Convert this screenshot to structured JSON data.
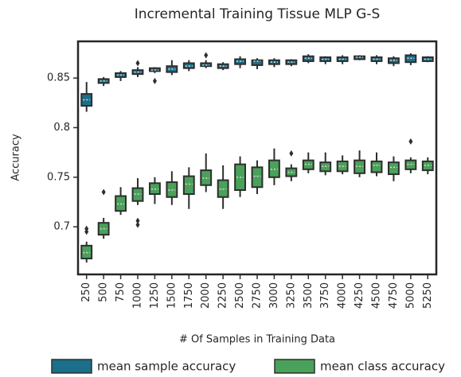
{
  "chart_data": {
    "type": "box",
    "title": "Incremental Training Tissue MLP G-S",
    "x_label": "# Of Samples in Training Data",
    "y_label": "Accuracy",
    "categories": [
      "250",
      "500",
      "750",
      "1000",
      "1250",
      "1500",
      "1750",
      "2000",
      "2250",
      "2500",
      "2750",
      "3000",
      "3250",
      "3500",
      "3750",
      "4000",
      "4250",
      "4500",
      "4750",
      "5000",
      "5250"
    ],
    "ylim": [
      0.652,
      0.887
    ],
    "yticks": [
      0.7,
      0.75,
      0.8,
      0.85
    ],
    "series": [
      {
        "name": "mean sample accuracy",
        "color": "#1b6f8a",
        "min": [
          0.816,
          0.842,
          0.847,
          0.851,
          0.855,
          0.853,
          0.857,
          0.86,
          0.858,
          0.86,
          0.859,
          0.861,
          0.862,
          0.865,
          0.864,
          0.864,
          0.868,
          0.864,
          0.862,
          0.863,
          0.866
        ],
        "q1": [
          0.822,
          0.845,
          0.851,
          0.854,
          0.857,
          0.856,
          0.86,
          0.862,
          0.86,
          0.864,
          0.863,
          0.864,
          0.864,
          0.867,
          0.867,
          0.867,
          0.869,
          0.867,
          0.865,
          0.866,
          0.867
        ],
        "median": [
          0.828,
          0.847,
          0.853,
          0.856,
          0.858,
          0.859,
          0.862,
          0.863,
          0.862,
          0.867,
          0.867,
          0.866,
          0.866,
          0.87,
          0.869,
          0.869,
          0.871,
          0.869,
          0.868,
          0.87,
          0.869
        ],
        "q3": [
          0.834,
          0.849,
          0.855,
          0.858,
          0.86,
          0.862,
          0.865,
          0.865,
          0.864,
          0.869,
          0.868,
          0.868,
          0.868,
          0.872,
          0.871,
          0.871,
          0.872,
          0.871,
          0.87,
          0.873,
          0.871
        ],
        "max": [
          0.846,
          0.851,
          0.857,
          0.861,
          0.861,
          0.868,
          0.868,
          0.868,
          0.866,
          0.872,
          0.87,
          0.87,
          0.869,
          0.874,
          0.872,
          0.873,
          0.873,
          0.873,
          0.872,
          0.875,
          0.872
        ],
        "outliers": [
          [],
          [],
          [],
          [
            0.865
          ],
          [
            0.847
          ],
          [],
          [],
          [
            0.873
          ],
          [],
          [],
          [],
          [],
          [],
          [],
          [],
          [],
          [],
          [],
          [],
          [],
          []
        ]
      },
      {
        "name": "mean class accuracy",
        "color": "#4aa15a",
        "min": [
          0.664,
          0.688,
          0.712,
          0.722,
          0.723,
          0.722,
          0.718,
          0.735,
          0.718,
          0.73,
          0.733,
          0.742,
          0.746,
          0.754,
          0.752,
          0.753,
          0.75,
          0.751,
          0.746,
          0.754,
          0.753
        ],
        "q1": [
          0.668,
          0.692,
          0.716,
          0.726,
          0.733,
          0.73,
          0.733,
          0.742,
          0.73,
          0.737,
          0.74,
          0.75,
          0.751,
          0.758,
          0.756,
          0.756,
          0.754,
          0.755,
          0.753,
          0.758,
          0.757
        ],
        "median": [
          0.674,
          0.698,
          0.723,
          0.733,
          0.738,
          0.737,
          0.743,
          0.749,
          0.738,
          0.75,
          0.751,
          0.758,
          0.755,
          0.763,
          0.761,
          0.761,
          0.761,
          0.762,
          0.76,
          0.763,
          0.762
        ],
        "q3": [
          0.681,
          0.704,
          0.731,
          0.739,
          0.744,
          0.745,
          0.751,
          0.757,
          0.747,
          0.763,
          0.76,
          0.767,
          0.759,
          0.767,
          0.765,
          0.766,
          0.767,
          0.766,
          0.765,
          0.767,
          0.766
        ],
        "max": [
          0.685,
          0.709,
          0.74,
          0.749,
          0.75,
          0.756,
          0.76,
          0.774,
          0.762,
          0.771,
          0.767,
          0.779,
          0.763,
          0.775,
          0.775,
          0.772,
          0.777,
          0.775,
          0.771,
          0.77,
          0.77
        ],
        "outliers": [
          [
            0.695,
            0.698
          ],
          [
            0.735
          ],
          [],
          [
            0.706,
            0.702
          ],
          [],
          [],
          [],
          [],
          [],
          [],
          [],
          [],
          [
            0.774
          ],
          [],
          [],
          [],
          [],
          [],
          [],
          [
            0.786
          ],
          []
        ]
      }
    ]
  }
}
